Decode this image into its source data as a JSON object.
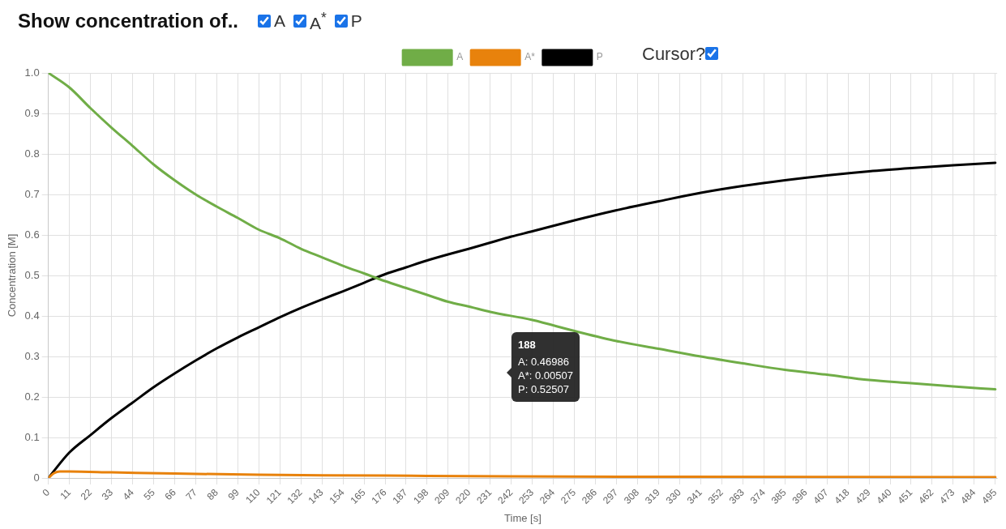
{
  "chart_data": {
    "type": "line",
    "title": "Show concentration of..",
    "xlabel": "Time [s]",
    "ylabel": "Concentration [M]",
    "xlim": [
      0,
      496
    ],
    "xticks": [
      0,
      11,
      22,
      33,
      44,
      55,
      66,
      77,
      88,
      99,
      110,
      121,
      132,
      143,
      154,
      165,
      176,
      187,
      198,
      209,
      220,
      231,
      242,
      253,
      264,
      275,
      286,
      297,
      308,
      319,
      330,
      341,
      352,
      363,
      374,
      385,
      396,
      407,
      418,
      429,
      440,
      451,
      462,
      473,
      484,
      495
    ],
    "ylim": [
      0,
      1
    ],
    "yticks": [
      0,
      0.1,
      0.2,
      0.3,
      0.4,
      0.5,
      0.6,
      0.7,
      0.8,
      0.9,
      {
        "value": 1,
        "label": "1.0"
      }
    ],
    "grid": true,
    "legend": "top",
    "marker": "none",
    "line_style": "solid",
    "series": [
      {
        "name": "A",
        "color": "#70ad47",
        "x": [
          0,
          11,
          22,
          33,
          44,
          55,
          66,
          77,
          88,
          99,
          110,
          121,
          132,
          143,
          154,
          165,
          176,
          187,
          198,
          209,
          220,
          231,
          253,
          275,
          297,
          319,
          341,
          363,
          385,
          407,
          429,
          451,
          473,
          495
        ],
        "values": [
          1.0,
          0.964,
          0.913,
          0.865,
          0.82,
          0.774,
          0.735,
          0.7,
          0.67,
          0.642,
          0.613,
          0.592,
          0.566,
          0.545,
          0.524,
          0.505,
          0.486,
          0.469,
          0.452,
          0.435,
          0.423,
          0.41,
          0.39,
          0.363,
          0.338,
          0.319,
          0.3,
          0.283,
          0.267,
          0.255,
          0.242,
          0.234,
          0.226,
          0.219
        ]
      },
      {
        "name": "A*",
        "color": "#e8820c",
        "x": [
          0,
          3,
          6,
          11,
          33,
          66,
          110,
          176,
          242,
          330,
          495
        ],
        "values": [
          0,
          0.012,
          0.016,
          0.016,
          0.014,
          0.011,
          0.008,
          0.006,
          0.004,
          0.003,
          0.002
        ]
      },
      {
        "name": "P",
        "color": "#000000",
        "x": [
          0,
          11,
          22,
          33,
          44,
          55,
          66,
          77,
          88,
          99,
          110,
          121,
          132,
          143,
          154,
          165,
          176,
          187,
          198,
          209,
          220,
          231,
          242,
          253,
          275,
          297,
          319,
          341,
          363,
          385,
          407,
          429,
          451,
          473,
          495
        ],
        "values": [
          0,
          0.063,
          0.106,
          0.148,
          0.186,
          0.224,
          0.258,
          0.29,
          0.32,
          0.347,
          0.372,
          0.397,
          0.42,
          0.441,
          0.461,
          0.482,
          0.503,
          0.52,
          0.537,
          0.552,
          0.566,
          0.581,
          0.596,
          0.609,
          0.636,
          0.661,
          0.683,
          0.704,
          0.721,
          0.735,
          0.747,
          0.757,
          0.765,
          0.772,
          0.778
        ]
      }
    ],
    "annotations": [
      "A",
      "A$^{*}$",
      "P",
      "Cursor?",
      "188\nA: 0.46986\nA*: 0.00507\nP: 0.52507"
    ]
  }
}
